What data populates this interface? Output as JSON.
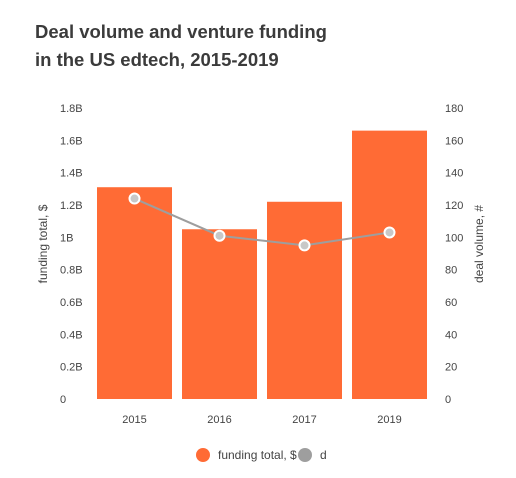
{
  "title_lines": [
    "Deal volume and venture funding",
    "in the US edtech, 2015-2019"
  ],
  "chart_data": {
    "type": "bar",
    "categories": [
      "2015",
      "2016",
      "2017",
      "2019"
    ],
    "series": [
      {
        "name": "funding total, $",
        "kind": "bar",
        "axis": "left",
        "values": [
          1.31,
          1.05,
          1.22,
          1.66
        ]
      },
      {
        "name": "d",
        "kind": "line",
        "axis": "right",
        "values": [
          124,
          101,
          95,
          103
        ]
      }
    ],
    "left_axis": {
      "label": "funding total, $",
      "range": [
        0,
        1.8
      ],
      "ticks": [
        "0",
        "0.2B",
        "0.4B",
        "0.6B",
        "0.8B",
        "1B",
        "1.2B",
        "1.4B",
        "1.6B",
        "1.8B"
      ]
    },
    "right_axis": {
      "label": "deal volume, #",
      "range": [
        0,
        180
      ],
      "ticks": [
        "0",
        "20",
        "40",
        "60",
        "80",
        "100",
        "120",
        "140",
        "160",
        "180"
      ]
    },
    "legend_position": "bottom",
    "colors": {
      "bar": "#ff6b35",
      "line": "#9e9e9e",
      "marker_fill": "#c8c8c8",
      "text": "#444444"
    }
  }
}
